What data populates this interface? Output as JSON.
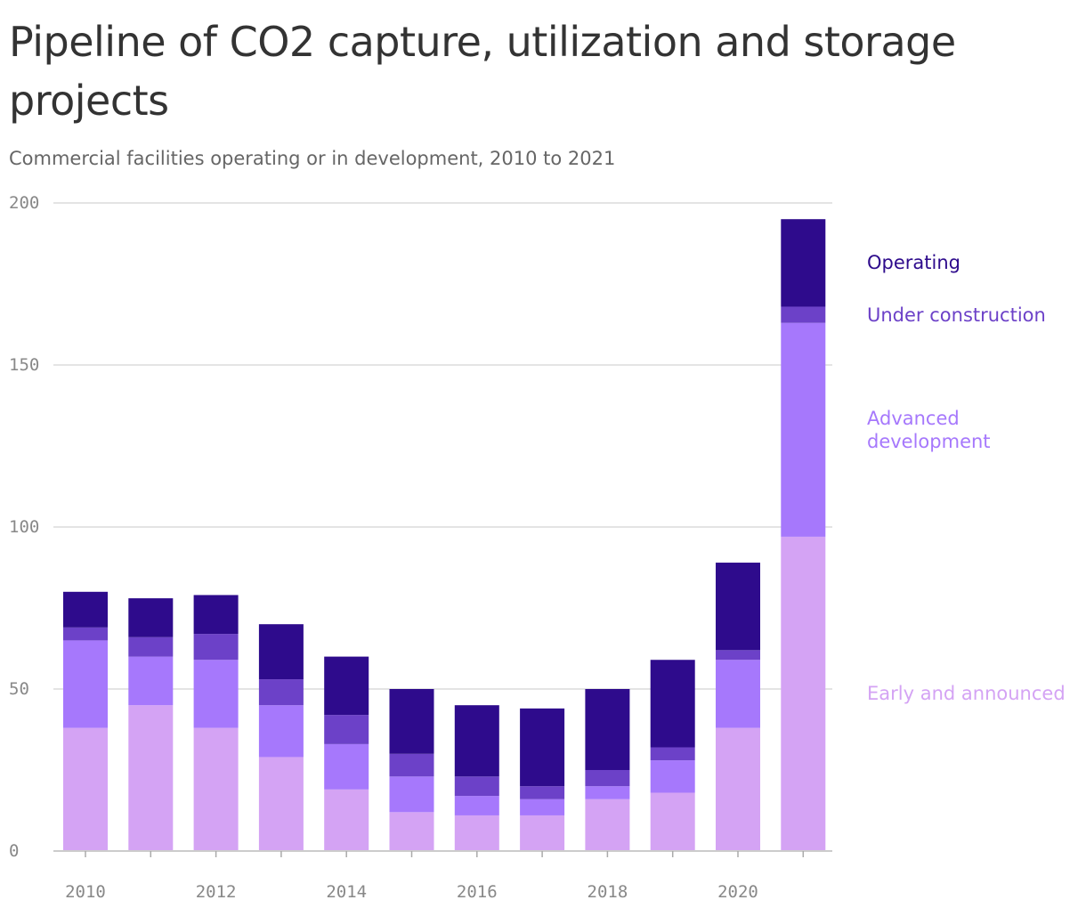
{
  "title": "Pipeline of CO2 capture, utilization and storage projects",
  "subtitle": "Commercial facilities operating or in development, 2010 to 2021",
  "chart_data": {
    "type": "bar",
    "stacked": true,
    "categories": [
      2010,
      2011,
      2012,
      2013,
      2014,
      2015,
      2016,
      2017,
      2018,
      2019,
      2020,
      2021
    ],
    "x_tick_labels": [
      "2010",
      "2012",
      "2014",
      "2016",
      "2018",
      "2020"
    ],
    "y_tick_labels": [
      "0",
      "50",
      "100",
      "150",
      "200"
    ],
    "ylim": [
      0,
      200
    ],
    "grid": true,
    "legend_placement": "right, labels aligned with the 2021 bar",
    "series": [
      {
        "name": "Early and announced",
        "color": "#d4a3f4",
        "values": [
          38,
          45,
          38,
          29,
          19,
          12,
          11,
          11,
          16,
          18,
          38,
          97
        ]
      },
      {
        "name": "Advanced development",
        "color": "#a678fc",
        "values": [
          27,
          15,
          21,
          16,
          14,
          11,
          6,
          5,
          4,
          10,
          21,
          66
        ]
      },
      {
        "name": "Under construction",
        "color": "#6c41c8",
        "values": [
          4,
          6,
          8,
          8,
          9,
          7,
          6,
          4,
          5,
          4,
          3,
          5
        ]
      },
      {
        "name": "Operating",
        "color": "#2e0b8c",
        "values": [
          11,
          12,
          12,
          17,
          18,
          20,
          22,
          24,
          25,
          27,
          27,
          27
        ]
      }
    ]
  }
}
